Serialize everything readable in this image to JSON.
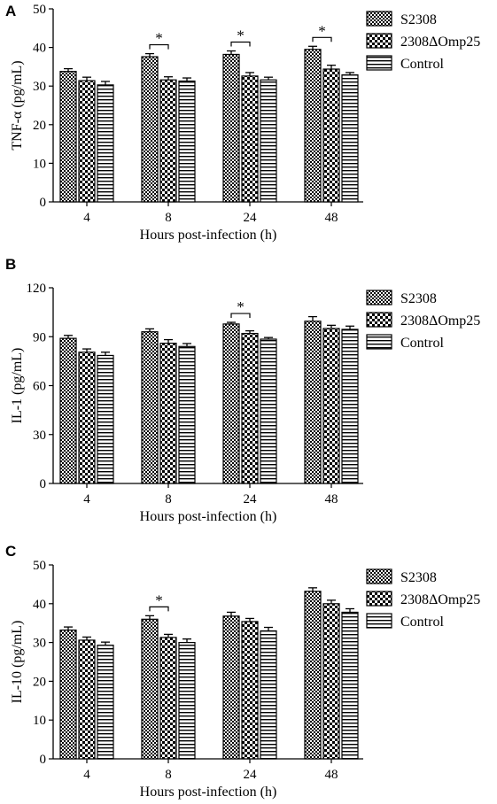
{
  "legend": {
    "entries": [
      {
        "label": "S2308",
        "pattern": "checker"
      },
      {
        "label": "2308ΔOmp25",
        "pattern": "bigchecker"
      },
      {
        "label": "Control",
        "pattern": "hstripe"
      }
    ]
  },
  "chart_data": [
    {
      "type": "bar",
      "panel": "A",
      "ylabel": "TNF-α  (pg/mL)",
      "xlabel": "Hours post-infection (h)",
      "categories": [
        "4",
        "8",
        "24",
        "48"
      ],
      "ylim": [
        0,
        50
      ],
      "yticks": [
        0,
        10,
        20,
        30,
        40,
        50
      ],
      "series": [
        {
          "name": "S2308",
          "values": [
            33.8,
            37.6,
            38.2,
            39.5
          ],
          "errors": [
            0.7,
            0.8,
            0.9,
            0.8
          ]
        },
        {
          "name": "2308ΔOmp25",
          "values": [
            31.4,
            31.6,
            32.6,
            34.4
          ],
          "errors": [
            0.9,
            0.8,
            0.9,
            1.0
          ]
        },
        {
          "name": "Control",
          "values": [
            30.3,
            31.3,
            31.6,
            32.9
          ],
          "errors": [
            0.9,
            0.8,
            0.7,
            0.6
          ]
        }
      ],
      "significance": [
        {
          "category": "8",
          "label": "*"
        },
        {
          "category": "24",
          "label": "*"
        },
        {
          "category": "48",
          "label": "*"
        }
      ]
    },
    {
      "type": "bar",
      "panel": "B",
      "ylabel": "IL-1 (pg/mL)",
      "xlabel": "Hours post-infection (h)",
      "categories": [
        "4",
        "8",
        "24",
        "48"
      ],
      "ylim": [
        0,
        120
      ],
      "yticks": [
        0,
        30,
        60,
        90,
        120
      ],
      "series": [
        {
          "name": "S2308",
          "values": [
            89.0,
            93.0,
            97.8,
            99.5
          ],
          "errors": [
            1.8,
            1.8,
            1.0,
            2.8
          ]
        },
        {
          "name": "2308ΔOmp25",
          "values": [
            80.5,
            86.0,
            92.0,
            95.0
          ],
          "errors": [
            2.0,
            2.2,
            1.6,
            2.0
          ]
        },
        {
          "name": "Control",
          "values": [
            78.5,
            84.0,
            88.5,
            94.5
          ],
          "errors": [
            2.0,
            1.8,
            1.0,
            2.0
          ]
        }
      ],
      "significance": [
        {
          "category": "24",
          "label": "*"
        }
      ]
    },
    {
      "type": "bar",
      "panel": "C",
      "ylabel": "IL-10 (pg/mL)",
      "xlabel": "Hours post-infection (h)",
      "categories": [
        "4",
        "8",
        "24",
        "48"
      ],
      "ylim": [
        0,
        50
      ],
      "yticks": [
        0,
        10,
        20,
        30,
        40,
        50
      ],
      "series": [
        {
          "name": "S2308",
          "values": [
            33.2,
            36.0,
            36.8,
            43.2
          ],
          "errors": [
            0.8,
            0.9,
            1.0,
            0.9
          ]
        },
        {
          "name": "2308ΔOmp25",
          "values": [
            30.6,
            31.3,
            35.4,
            40.0
          ],
          "errors": [
            0.8,
            0.8,
            0.8,
            0.9
          ]
        },
        {
          "name": "Control",
          "values": [
            29.3,
            30.0,
            33.0,
            37.8
          ],
          "errors": [
            0.8,
            0.9,
            0.9,
            0.9
          ]
        }
      ],
      "significance": [
        {
          "category": "8",
          "label": "*"
        }
      ]
    }
  ]
}
